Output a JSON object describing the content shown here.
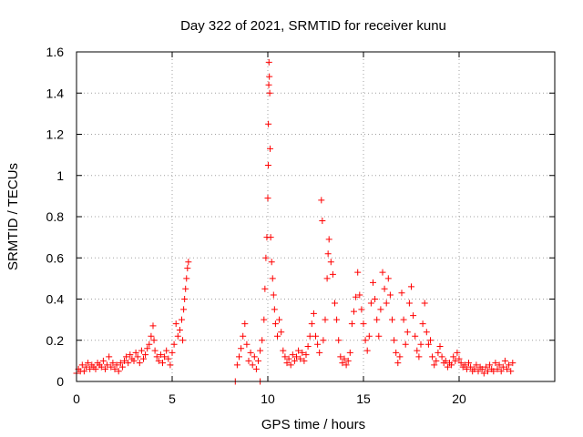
{
  "chart_data": {
    "type": "scatter",
    "title": "Day 322 of 2021, SRMTID for receiver kunu",
    "xlabel": "GPS time / hours",
    "ylabel": "SRMTID / TECUs",
    "xlim": [
      0,
      25
    ],
    "ylim": [
      0,
      1.6
    ],
    "xticks": [
      0,
      5,
      10,
      15,
      20
    ],
    "xtick_labels": [
      "0",
      "5",
      "10",
      "15",
      "20"
    ],
    "yticks": [
      0,
      0.2,
      0.4,
      0.6,
      0.8,
      1.0,
      1.2,
      1.4,
      1.6
    ],
    "ytick_labels": [
      "0",
      "0.2",
      "0.4",
      "0.6",
      "0.8",
      "1",
      "1.2",
      "1.4",
      "1.6"
    ],
    "grid": true,
    "marker": "+",
    "marker_color": "#ff0000",
    "series": [
      {
        "name": "SRMTID",
        "points": [
          [
            0.0,
            0.04
          ],
          [
            0.1,
            0.06
          ],
          [
            0.2,
            0.05
          ],
          [
            0.3,
            0.08
          ],
          [
            0.4,
            0.05
          ],
          [
            0.5,
            0.07
          ],
          [
            0.6,
            0.09
          ],
          [
            0.7,
            0.06
          ],
          [
            0.8,
            0.08
          ],
          [
            0.9,
            0.07
          ],
          [
            1.0,
            0.06
          ],
          [
            1.1,
            0.09
          ],
          [
            1.2,
            0.08
          ],
          [
            1.3,
            0.07
          ],
          [
            1.4,
            0.1
          ],
          [
            1.5,
            0.06
          ],
          [
            1.6,
            0.08
          ],
          [
            1.7,
            0.12
          ],
          [
            1.8,
            0.07
          ],
          [
            1.9,
            0.09
          ],
          [
            2.0,
            0.06
          ],
          [
            2.1,
            0.08
          ],
          [
            2.2,
            0.05
          ],
          [
            2.3,
            0.09
          ],
          [
            2.4,
            0.07
          ],
          [
            2.5,
            0.1
          ],
          [
            2.6,
            0.12
          ],
          [
            2.7,
            0.09
          ],
          [
            2.8,
            0.13
          ],
          [
            2.9,
            0.11
          ],
          [
            3.0,
            0.1
          ],
          [
            3.1,
            0.14
          ],
          [
            3.2,
            0.12
          ],
          [
            3.3,
            0.09
          ],
          [
            3.4,
            0.15
          ],
          [
            3.5,
            0.11
          ],
          [
            3.6,
            0.13
          ],
          [
            3.7,
            0.16
          ],
          [
            3.8,
            0.18
          ],
          [
            3.9,
            0.22
          ],
          [
            4.0,
            0.27
          ],
          [
            4.05,
            0.2
          ],
          [
            4.1,
            0.15
          ],
          [
            4.2,
            0.12
          ],
          [
            4.3,
            0.1
          ],
          [
            4.4,
            0.13
          ],
          [
            4.5,
            0.09
          ],
          [
            4.6,
            0.12
          ],
          [
            4.7,
            0.15
          ],
          [
            4.8,
            0.11
          ],
          [
            4.9,
            0.08
          ],
          [
            5.0,
            0.14
          ],
          [
            5.1,
            0.18
          ],
          [
            5.2,
            0.28
          ],
          [
            5.3,
            0.22
          ],
          [
            5.4,
            0.25
          ],
          [
            5.5,
            0.3
          ],
          [
            5.55,
            0.2
          ],
          [
            5.6,
            0.35
          ],
          [
            5.65,
            0.4
          ],
          [
            5.7,
            0.45
          ],
          [
            5.75,
            0.5
          ],
          [
            5.8,
            0.55
          ],
          [
            5.85,
            0.58
          ],
          [
            8.3,
            0.0
          ],
          [
            9.6,
            0.0
          ],
          [
            8.4,
            0.08
          ],
          [
            8.5,
            0.12
          ],
          [
            8.6,
            0.16
          ],
          [
            8.7,
            0.22
          ],
          [
            8.8,
            0.28
          ],
          [
            8.9,
            0.18
          ],
          [
            9.0,
            0.1
          ],
          [
            9.1,
            0.14
          ],
          [
            9.2,
            0.08
          ],
          [
            9.3,
            0.12
          ],
          [
            9.4,
            0.06
          ],
          [
            9.5,
            0.1
          ],
          [
            9.6,
            0.15
          ],
          [
            9.7,
            0.2
          ],
          [
            9.8,
            0.3
          ],
          [
            9.85,
            0.45
          ],
          [
            9.9,
            0.6
          ],
          [
            9.95,
            0.7
          ],
          [
            10.0,
            0.89
          ],
          [
            10.02,
            1.05
          ],
          [
            10.03,
            1.25
          ],
          [
            10.05,
            1.44
          ],
          [
            10.06,
            1.55
          ],
          [
            10.08,
            1.48
          ],
          [
            10.1,
            1.4
          ],
          [
            10.12,
            1.13
          ],
          [
            10.15,
            0.7
          ],
          [
            10.2,
            0.58
          ],
          [
            10.25,
            0.5
          ],
          [
            10.3,
            0.42
          ],
          [
            10.35,
            0.35
          ],
          [
            10.4,
            0.28
          ],
          [
            10.5,
            0.22
          ],
          [
            10.6,
            0.3
          ],
          [
            10.7,
            0.24
          ],
          [
            10.8,
            0.15
          ],
          [
            10.9,
            0.12
          ],
          [
            11.0,
            0.09
          ],
          [
            11.1,
            0.11
          ],
          [
            11.2,
            0.08
          ],
          [
            11.3,
            0.13
          ],
          [
            11.4,
            0.1
          ],
          [
            11.5,
            0.12
          ],
          [
            11.6,
            0.15
          ],
          [
            11.7,
            0.11
          ],
          [
            11.8,
            0.14
          ],
          [
            11.9,
            0.1
          ],
          [
            12.0,
            0.13
          ],
          [
            12.1,
            0.17
          ],
          [
            12.2,
            0.22
          ],
          [
            12.3,
            0.28
          ],
          [
            12.4,
            0.33
          ],
          [
            12.5,
            0.22
          ],
          [
            12.6,
            0.18
          ],
          [
            12.7,
            0.14
          ],
          [
            12.8,
            0.88
          ],
          [
            12.85,
            0.78
          ],
          [
            12.9,
            0.2
          ],
          [
            13.0,
            0.3
          ],
          [
            13.1,
            0.5
          ],
          [
            13.15,
            0.62
          ],
          [
            13.2,
            0.69
          ],
          [
            13.3,
            0.58
          ],
          [
            13.4,
            0.52
          ],
          [
            13.5,
            0.38
          ],
          [
            13.6,
            0.3
          ],
          [
            13.7,
            0.2
          ],
          [
            13.8,
            0.12
          ],
          [
            13.9,
            0.09
          ],
          [
            14.0,
            0.11
          ],
          [
            14.1,
            0.08
          ],
          [
            14.2,
            0.1
          ],
          [
            14.3,
            0.14
          ],
          [
            14.4,
            0.28
          ],
          [
            14.5,
            0.34
          ],
          [
            14.6,
            0.41
          ],
          [
            14.7,
            0.53
          ],
          [
            14.8,
            0.42
          ],
          [
            14.9,
            0.35
          ],
          [
            15.0,
            0.28
          ],
          [
            15.1,
            0.2
          ],
          [
            15.2,
            0.15
          ],
          [
            15.3,
            0.22
          ],
          [
            15.4,
            0.38
          ],
          [
            15.5,
            0.48
          ],
          [
            15.6,
            0.4
          ],
          [
            15.7,
            0.3
          ],
          [
            15.8,
            0.22
          ],
          [
            15.9,
            0.35
          ],
          [
            16.0,
            0.53
          ],
          [
            16.1,
            0.45
          ],
          [
            16.2,
            0.38
          ],
          [
            16.3,
            0.5
          ],
          [
            16.4,
            0.42
          ],
          [
            16.5,
            0.3
          ],
          [
            16.6,
            0.2
          ],
          [
            16.7,
            0.14
          ],
          [
            16.8,
            0.09
          ],
          [
            16.9,
            0.12
          ],
          [
            17.0,
            0.43
          ],
          [
            17.1,
            0.3
          ],
          [
            17.2,
            0.18
          ],
          [
            17.3,
            0.24
          ],
          [
            17.4,
            0.38
          ],
          [
            17.5,
            0.46
          ],
          [
            17.6,
            0.32
          ],
          [
            17.7,
            0.22
          ],
          [
            17.8,
            0.15
          ],
          [
            17.9,
            0.12
          ],
          [
            18.0,
            0.18
          ],
          [
            18.1,
            0.28
          ],
          [
            18.2,
            0.38
          ],
          [
            18.3,
            0.24
          ],
          [
            18.4,
            0.18
          ],
          [
            18.5,
            0.2
          ],
          [
            18.6,
            0.12
          ],
          [
            18.7,
            0.08
          ],
          [
            18.8,
            0.1
          ],
          [
            18.9,
            0.14
          ],
          [
            19.0,
            0.17
          ],
          [
            19.1,
            0.12
          ],
          [
            19.2,
            0.09
          ],
          [
            19.3,
            0.1
          ],
          [
            19.4,
            0.07
          ],
          [
            19.5,
            0.09
          ],
          [
            19.6,
            0.08
          ],
          [
            19.7,
            0.12
          ],
          [
            19.8,
            0.1
          ],
          [
            19.9,
            0.14
          ],
          [
            20.0,
            0.11
          ],
          [
            20.1,
            0.09
          ],
          [
            20.2,
            0.07
          ],
          [
            20.3,
            0.08
          ],
          [
            20.4,
            0.06
          ],
          [
            20.5,
            0.09
          ],
          [
            20.6,
            0.07
          ],
          [
            20.7,
            0.05
          ],
          [
            20.8,
            0.06
          ],
          [
            20.9,
            0.08
          ],
          [
            21.0,
            0.05
          ],
          [
            21.1,
            0.07
          ],
          [
            21.2,
            0.06
          ],
          [
            21.3,
            0.04
          ],
          [
            21.4,
            0.07
          ],
          [
            21.5,
            0.05
          ],
          [
            21.6,
            0.08
          ],
          [
            21.7,
            0.06
          ],
          [
            21.8,
            0.05
          ],
          [
            21.9,
            0.09
          ],
          [
            22.0,
            0.06
          ],
          [
            22.1,
            0.08
          ],
          [
            22.2,
            0.05
          ],
          [
            22.3,
            0.07
          ],
          [
            22.4,
            0.1
          ],
          [
            22.5,
            0.06
          ],
          [
            22.6,
            0.08
          ],
          [
            22.7,
            0.05
          ],
          [
            22.8,
            0.09
          ]
        ]
      }
    ]
  }
}
